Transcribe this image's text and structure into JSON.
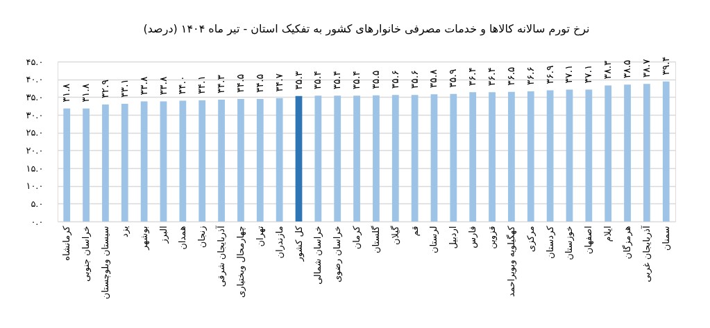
{
  "chart_data": {
    "type": "bar",
    "title": "نرخ تورم سالانه کالاها و خدمات مصرفی خانوارهای کشور به تفکیک استان - تیر ماه ۱۴۰۴ (درصد)",
    "categories": [
      "کرمانشاه",
      "خراسان جنوبی",
      "سیستان وبلوچستان",
      "یزد",
      "بوشهر",
      "البرز",
      "همدان",
      "زنجان",
      "آذربایجان شرقی",
      "چهارمحال وبختیاری",
      "تهران",
      "مازندران",
      "کل کشور",
      "خراسان شمالی",
      "خراسان رضوی",
      "کرمان",
      "گلستان",
      "گیلان",
      "قم",
      "لرستان",
      "اردبیل",
      "فارس",
      "قزوین",
      "کهگیلویه وبویراحمد",
      "مرکزی",
      "کردستان",
      "خوزستان",
      "اصفهان",
      "ایلام",
      "هرمزگان",
      "آذربایجان غربی",
      "سمنان"
    ],
    "values": [
      31.8,
      31.8,
      32.9,
      33.1,
      33.8,
      33.8,
      34.0,
      34.1,
      34.3,
      34.5,
      34.5,
      34.7,
      35.3,
      35.4,
      35.4,
      35.4,
      35.5,
      35.6,
      35.6,
      35.8,
      35.9,
      36.4,
      36.4,
      36.5,
      36.6,
      36.9,
      37.1,
      37.1,
      38.3,
      38.5,
      38.7,
      39.4
    ],
    "value_labels": [
      "۳۱.۸",
      "۳۱.۸",
      "۳۲.۹",
      "۳۳.۱",
      "۳۳.۸",
      "۳۳.۸",
      "۳۴.۰",
      "۳۴.۱",
      "۳۴.۳",
      "۳۴.۵",
      "۳۴.۵",
      "۳۴.۷",
      "۳۵.۳",
      "۳۵.۴",
      "۳۵.۴",
      "۳۵.۴",
      "۳۵.۵",
      "۳۵.۶",
      "۳۵.۶",
      "۳۵.۸",
      "۳۵.۹",
      "۳۶.۴",
      "۳۶.۴",
      "۳۶.۵",
      "۳۶.۶",
      "۳۶.۹",
      "۳۷.۱",
      "۳۷.۱",
      "۳۸.۳",
      "۳۸.۵",
      "۳۸.۷",
      "۳۹.۴"
    ],
    "colors": [
      "#9dc3e6",
      "#9dc3e6",
      "#9dc3e6",
      "#9dc3e6",
      "#9dc3e6",
      "#9dc3e6",
      "#9dc3e6",
      "#9dc3e6",
      "#9dc3e6",
      "#9dc3e6",
      "#9dc3e6",
      "#9dc3e6",
      "#2e75b6",
      "#9dc3e6",
      "#9dc3e6",
      "#9dc3e6",
      "#9dc3e6",
      "#9dc3e6",
      "#9dc3e6",
      "#9dc3e6",
      "#9dc3e6",
      "#9dc3e6",
      "#9dc3e6",
      "#9dc3e6",
      "#9dc3e6",
      "#9dc3e6",
      "#9dc3e6",
      "#9dc3e6",
      "#9dc3e6",
      "#9dc3e6",
      "#9dc3e6",
      "#9dc3e6"
    ],
    "ylim": [
      0,
      45
    ],
    "yticks": [
      {
        "value": 0,
        "label": "۰.۰"
      },
      {
        "value": 5,
        "label": "۵.۰"
      },
      {
        "value": 10,
        "label": "۱۰.۰"
      },
      {
        "value": 15,
        "label": "۱۵.۰"
      },
      {
        "value": 20,
        "label": "۲۰.۰"
      },
      {
        "value": 25,
        "label": "۲۵.۰"
      },
      {
        "value": 30,
        "label": "۳۰.۰"
      },
      {
        "value": 35,
        "label": "۳۵.۰"
      },
      {
        "value": 40,
        "label": "۴۰.۰"
      },
      {
        "value": 45,
        "label": "۴۵.۰"
      }
    ],
    "grid": "y"
  }
}
